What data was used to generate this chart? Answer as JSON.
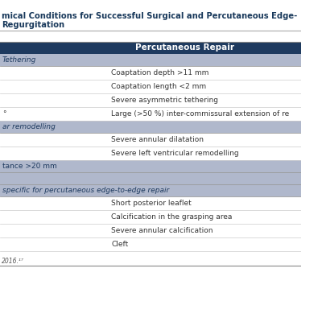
{
  "title_line1": "mical Conditions for Successful Surgical and Percutaneous Edge-",
  "title_line2": "Regurgitation",
  "header_col": "Percutaneous Repair",
  "header_bg": "#1e3a5f",
  "header_fg": "#ffffff",
  "section_bg": "#b0b8cc",
  "section_fg": "#1e3a5f",
  "row_bg_light": "#ffffff",
  "row_bg_alt": "#f5f5f5",
  "divider_color": "#cccccc",
  "title_color": "#1a3a5c",
  "footer_text": "2016.¹⁷",
  "sections": [
    {
      "label": "Tethering",
      "is_section": true,
      "rows": [
        {
          "left": "",
          "right": "Coaptation depth >11 mm"
        },
        {
          "left": "",
          "right": "Coaptation length <2 mm"
        },
        {
          "left": "",
          "right": "Severe asymmetric tethering"
        },
        {
          "left": "°",
          "right": "Large (>50 %) inter-commissural extension of re"
        }
      ]
    },
    {
      "label": "ar remodelling",
      "is_section": true,
      "rows": [
        {
          "left": "",
          "right": "Severe annular dilatation"
        },
        {
          "left": "",
          "right": "Severe left ventricular remodelling"
        }
      ]
    },
    {
      "label": "tance >20 mm",
      "is_section": false,
      "rows": []
    },
    {
      "label": "",
      "is_section": false,
      "rows": []
    },
    {
      "label": "specific for percutaneous edge-to-edge repair",
      "is_section": true,
      "rows": [
        {
          "left": "",
          "right": "Short posterior leaflet"
        },
        {
          "left": "",
          "right": "Calcification in the grasping area"
        },
        {
          "left": "",
          "right": "Severe annular calcification"
        },
        {
          "left": "",
          "right": "Cleft"
        }
      ]
    }
  ]
}
